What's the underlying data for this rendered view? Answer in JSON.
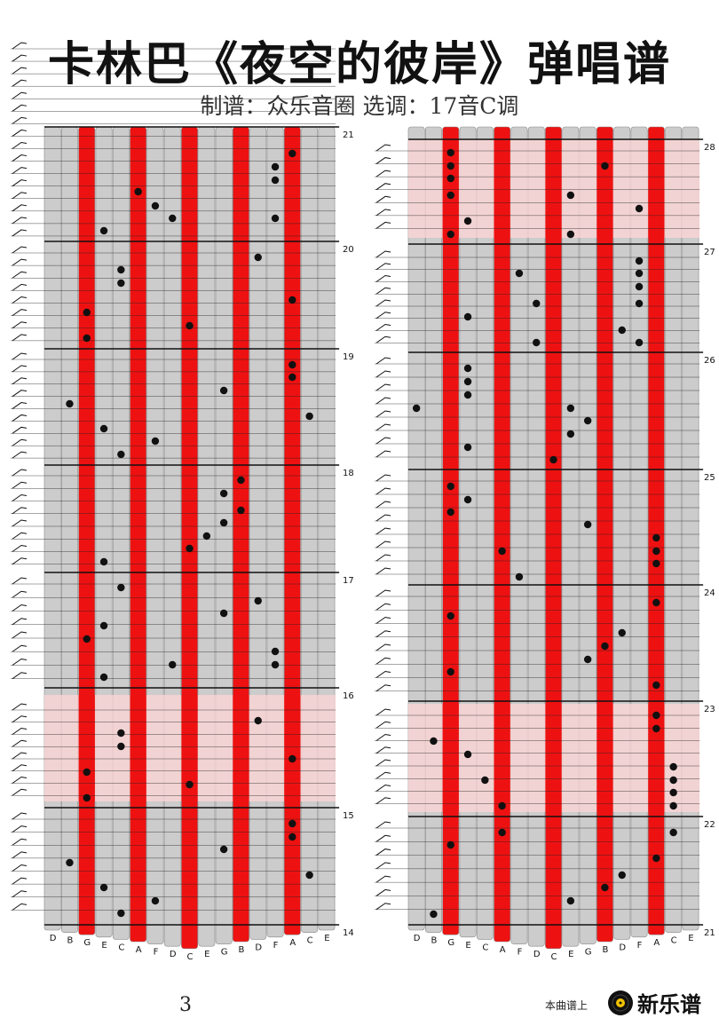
{
  "header": {
    "title": "卡林巴《夜空的彼岸》弹唱谱",
    "subtitle": "制谱：众乐音圈   选调：17音C调"
  },
  "footer": {
    "page_number": "3",
    "notice": "本曲谱上",
    "brand": "新乐谱"
  },
  "colors": {
    "red_tine": "#ee1111",
    "gray_tine": "#cccccc",
    "highlight": "#ffd6d6",
    "note": "#111111"
  },
  "tines": [
    "D",
    "B",
    "G",
    "E",
    "C",
    "A",
    "F",
    "D",
    "C",
    "E",
    "G",
    "B",
    "D",
    "F",
    "A",
    "C",
    "E"
  ],
  "columns": [
    {
      "id": "left",
      "measures_top_to_bottom": [
        "21",
        "20",
        "19",
        "18",
        "17",
        "16",
        "15",
        "14"
      ],
      "highlighted_measures": [
        "16"
      ]
    },
    {
      "id": "right",
      "measures_top_to_bottom": [
        "28",
        "27",
        "26",
        "25",
        "24",
        "23",
        "22",
        "21"
      ],
      "highlighted_measures": [
        "28",
        "23"
      ]
    }
  ]
}
